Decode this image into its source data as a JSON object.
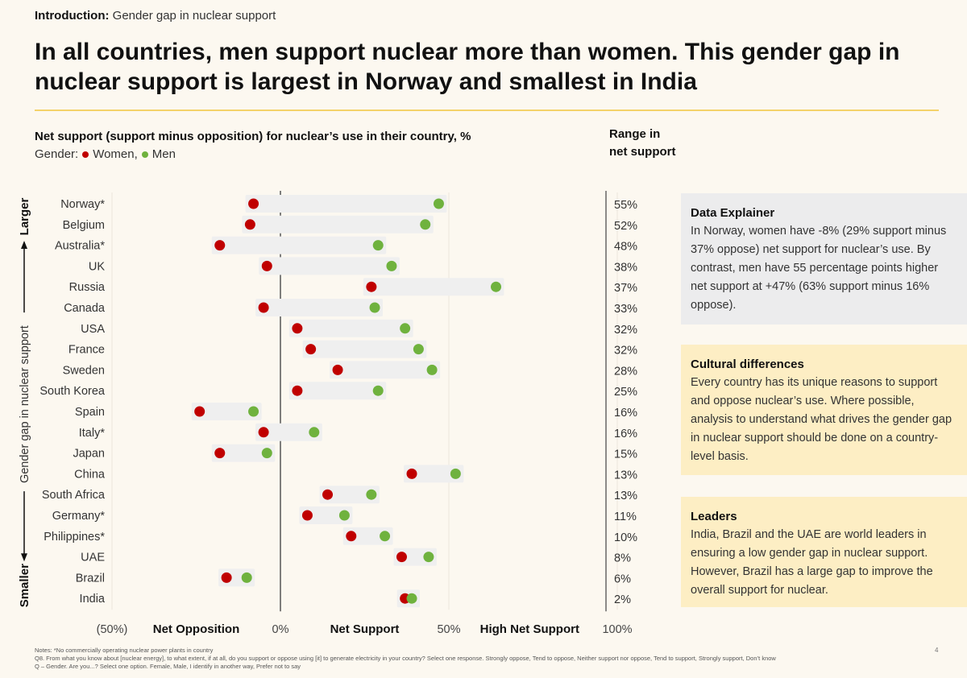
{
  "intro": {
    "prefix": "Introduction:",
    "text": "Gender gap in nuclear support"
  },
  "title": "In all countries, men support nuclear more than women. This gender gap in nuclear support is largest in Norway and smallest in India",
  "subtitle": "Net support (support minus opposition) for nuclear’s use in their country, %",
  "legend": {
    "label": "Gender:",
    "items": [
      {
        "name": "Women,",
        "color": "#c00000"
      },
      {
        "name": "Men",
        "color": "#6fb23e"
      }
    ]
  },
  "range_heading": {
    "line1": "Range in",
    "line2": "net support"
  },
  "chart_data": {
    "type": "dumbbell",
    "xlim": [
      -50,
      100
    ],
    "x_tick_labels": [
      "(50%)",
      "0%",
      "50%",
      "100%"
    ],
    "x_axis_labels": [
      "Net Opposition",
      "Net Support",
      "High Net Support"
    ],
    "y_axis_label": "Gender gap in nuclear support",
    "y_axis_ends": {
      "top": "Larger",
      "bottom": "Smaller"
    },
    "series_colors": {
      "women": "#c00000",
      "men": "#6fb23e"
    },
    "rows": [
      {
        "country": "Norway*",
        "women": -8,
        "men": 47,
        "range": "55%"
      },
      {
        "country": "Belgium",
        "women": -9,
        "men": 43,
        "range": "52%"
      },
      {
        "country": "Australia*",
        "women": -18,
        "men": 29,
        "range": "48%"
      },
      {
        "country": "UK",
        "women": -4,
        "men": 33,
        "range": "38%"
      },
      {
        "country": "Russia",
        "women": 27,
        "men": 64,
        "range": "37%"
      },
      {
        "country": "Canada",
        "women": -5,
        "men": 28,
        "range": "33%"
      },
      {
        "country": "USA",
        "women": 5,
        "men": 37,
        "range": "32%"
      },
      {
        "country": "France",
        "women": 9,
        "men": 41,
        "range": "32%"
      },
      {
        "country": "Sweden",
        "women": 17,
        "men": 45,
        "range": "28%"
      },
      {
        "country": "South Korea",
        "women": 5,
        "men": 29,
        "range": "25%"
      },
      {
        "country": "Spain",
        "women": -24,
        "men": -8,
        "range": "16%"
      },
      {
        "country": "Italy*",
        "women": -5,
        "men": 10,
        "range": "16%"
      },
      {
        "country": "Japan",
        "women": -18,
        "men": -4,
        "range": "15%"
      },
      {
        "country": "China",
        "women": 39,
        "men": 52,
        "range": "13%"
      },
      {
        "country": "South Africa",
        "women": 14,
        "men": 27,
        "range": "13%"
      },
      {
        "country": "Germany*",
        "women": 8,
        "men": 19,
        "range": "11%"
      },
      {
        "country": "Philippines*",
        "women": 21,
        "men": 31,
        "range": "10%"
      },
      {
        "country": "UAE",
        "women": 36,
        "men": 44,
        "range": "8%"
      },
      {
        "country": "Brazil",
        "women": -16,
        "men": -10,
        "range": "6%"
      },
      {
        "country": "India",
        "women": 37,
        "men": 39,
        "range": "2%"
      }
    ]
  },
  "boxes": [
    {
      "title": "Data Explainer",
      "text": "In Norway, women have -8% (29% support minus 37% oppose) net support for nuclear’s use. By contrast, men have 55 percentage points higher net support at +47% (63% support minus 16% oppose)."
    },
    {
      "title": "Cultural differences",
      "text": "Every country has its unique reasons to support and oppose nuclear’s use. Where possible, analysis to understand what drives the gender gap in nuclear support should be done on a country-level basis."
    },
    {
      "title": "Leaders",
      "text": "India, Brazil and the UAE are world leaders in ensuring a low gender gap in nuclear support. However, Brazil has a large gap to improve the overall support for nuclear."
    }
  ],
  "notes": [
    "Notes: *No commercially operating nuclear power plants in country",
    "Q8. From what you know about [nuclear energy], to what extent, if at all, do you support or oppose using [it] to generate electricity in your country? Select one response. Strongly oppose, Tend to oppose, Neither support nor oppose, Tend to support, Strongly support, Don’t know",
    "Q – Gender. Are you...? Select one option. Female, Male, I identify in another way, Prefer not to say"
  ],
  "page_number": "4"
}
